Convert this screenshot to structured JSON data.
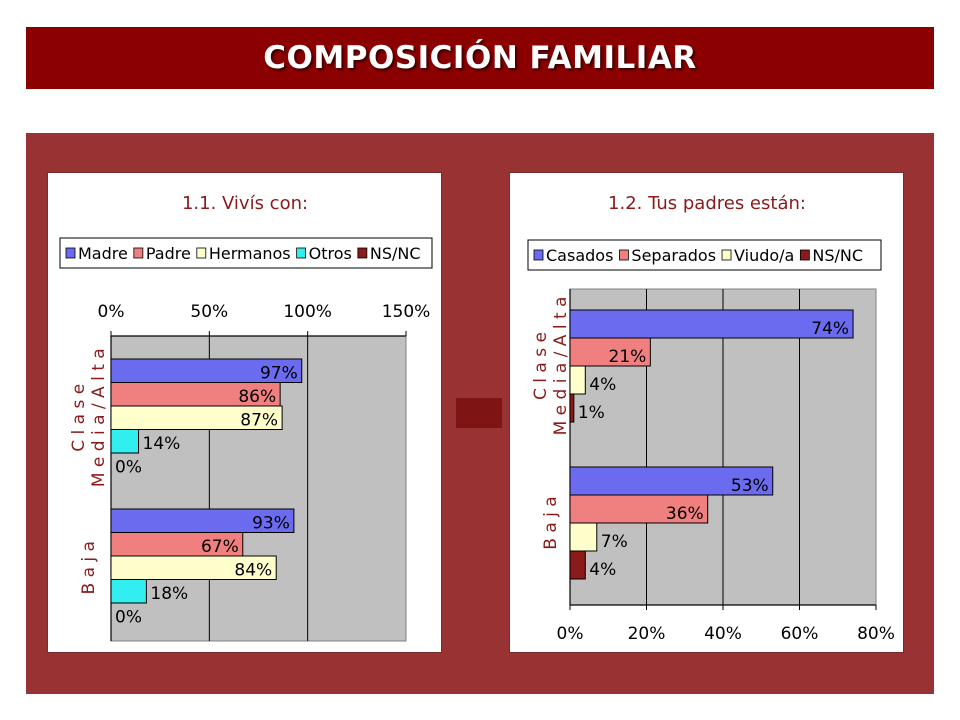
{
  "title": "COMPOSICIÓN FAMILIAR",
  "colors": {
    "banner": "#8b0000",
    "panel": "#993333",
    "plot_bg": "#c0c0c0",
    "label_red": "#8b1a1a"
  },
  "chart_data": [
    {
      "type": "bar",
      "orientation": "horizontal",
      "title": "1.1. Vivís con:",
      "categories": [
        "Clase Media/Alta",
        "Baja"
      ],
      "category_labels": [
        [
          "C l a s e",
          "M e d i a / A l t a"
        ],
        [
          "B a j a"
        ]
      ],
      "series": [
        {
          "name": "Madre",
          "color": "#6b6bf0",
          "values": [
            97,
            93
          ],
          "labels": [
            "97%",
            "93%"
          ]
        },
        {
          "name": "Padre",
          "color": "#f08080",
          "values": [
            86,
            67
          ],
          "labels": [
            "86%",
            "67%"
          ]
        },
        {
          "name": "Hermanos",
          "color": "#ffffcc",
          "values": [
            87,
            84
          ],
          "labels": [
            "87%",
            "84%"
          ]
        },
        {
          "name": "Otros",
          "color": "#33eeee",
          "values": [
            14,
            18
          ],
          "labels": [
            "14%",
            "18%"
          ]
        },
        {
          "name": "NS/NC",
          "color": "#8b1a1a",
          "values": [
            0,
            0
          ],
          "labels": [
            "0%",
            "0%"
          ]
        }
      ],
      "xlim": [
        0,
        150
      ],
      "xticks": [
        "0%",
        "50%",
        "100%",
        "150%"
      ],
      "axis_position": "top",
      "legend": "top",
      "grid": true
    },
    {
      "type": "bar",
      "orientation": "horizontal",
      "title": "1.2. Tus padres están:",
      "categories": [
        "Clase Media/Alta",
        "Baja"
      ],
      "category_labels": [
        [
          "C l a s e",
          "M e d i a / A l t a"
        ],
        [
          "B a j a"
        ]
      ],
      "series": [
        {
          "name": "Casados",
          "color": "#6b6bf0",
          "values": [
            74,
            53
          ],
          "labels": [
            "74%",
            "53%"
          ]
        },
        {
          "name": "Separados",
          "color": "#f08080",
          "values": [
            21,
            36
          ],
          "labels": [
            "21%",
            "36%"
          ]
        },
        {
          "name": "Viudo/a",
          "color": "#ffffcc",
          "values": [
            4,
            7
          ],
          "labels": [
            "4%",
            "7%"
          ]
        },
        {
          "name": "NS/NC",
          "color": "#8b1a1a",
          "values": [
            1,
            4
          ],
          "labels": [
            "1%",
            "4%"
          ]
        }
      ],
      "xlim": [
        0,
        80
      ],
      "xticks": [
        "0%",
        "20%",
        "40%",
        "60%",
        "80%"
      ],
      "axis_position": "bottom",
      "legend": "top",
      "grid": true
    }
  ]
}
